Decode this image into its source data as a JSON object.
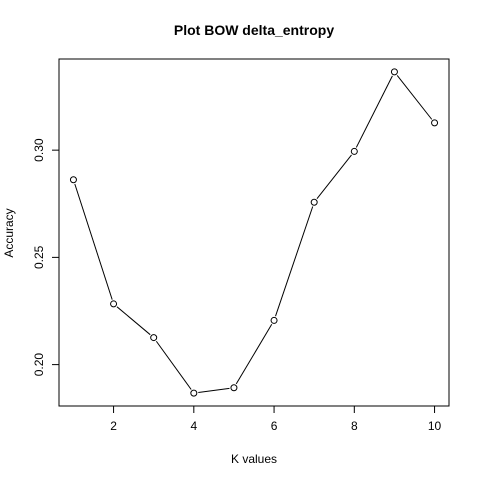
{
  "chart_data": {
    "type": "line",
    "title": "Plot BOW delta_entropy",
    "xlabel": "K values",
    "ylabel": "Accuracy",
    "x": [
      1,
      2,
      3,
      4,
      5,
      6,
      7,
      8,
      9,
      10
    ],
    "series": [
      {
        "values": [
          0.2862,
          0.2283,
          0.2126,
          0.1867,
          0.1892,
          0.2206,
          0.2757,
          0.2994,
          0.3365,
          0.3127
        ]
      }
    ],
    "xticks": [
      2,
      4,
      6,
      8,
      10
    ],
    "xtick_labels": [
      "2",
      "4",
      "6",
      "8",
      "10"
    ],
    "yticks": [
      0.2,
      0.25,
      0.3
    ],
    "ytick_labels": [
      "0.20",
      "0.25",
      "0.30"
    ],
    "xlim": [
      0.64,
      10.36
    ],
    "ylim": [
      0.1807,
      0.3425
    ],
    "marker": "open-circle",
    "line_color": "#000000",
    "grid": false,
    "legend": "none"
  }
}
